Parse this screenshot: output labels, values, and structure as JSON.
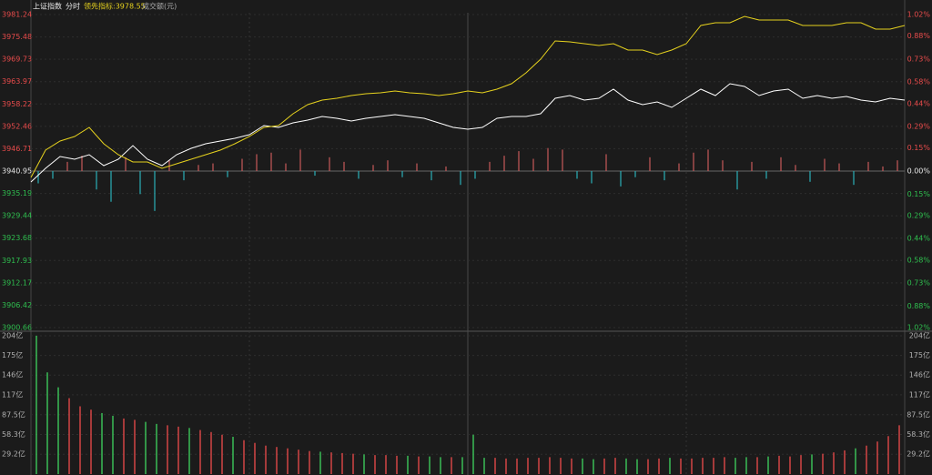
{
  "header": {
    "title": "上证指数",
    "mode": "分时",
    "indicator": "领先指标:3978.55",
    "volume_label": "成交额(元)"
  },
  "chart_data": [
    {
      "type": "line",
      "ylim": [
        3900.66,
        3981.24
      ],
      "yticks": [
        3981.24,
        3975.48,
        3969.73,
        3963.97,
        3958.22,
        3952.46,
        3946.71,
        3940.95,
        3935.19,
        3929.44,
        3923.68,
        3917.93,
        3912.17,
        3906.42,
        3900.66
      ],
      "y2lim": [
        -1.02,
        1.02
      ],
      "y2ticks": [
        {
          "value": 1.02,
          "label": "1.02%"
        },
        {
          "value": 0.88,
          "label": "0.88%"
        },
        {
          "value": 0.73,
          "label": "0.73%"
        },
        {
          "value": 0.58,
          "label": "0.58%"
        },
        {
          "value": 0.44,
          "label": "0.44%"
        },
        {
          "value": 0.29,
          "label": "0.29%"
        },
        {
          "value": 0.15,
          "label": "0.15%"
        },
        {
          "value": 0,
          "label": "0.00%"
        },
        {
          "value": -0.15,
          "label": "0.15%"
        },
        {
          "value": -0.29,
          "label": "0.29%"
        },
        {
          "value": -0.44,
          "label": "0.44%"
        },
        {
          "value": -0.58,
          "label": "0.58%"
        },
        {
          "value": -0.73,
          "label": "0.73%"
        },
        {
          "value": -0.88,
          "label": "0.88%"
        },
        {
          "value": -1.02,
          "label": "1.02%"
        }
      ],
      "grid": true,
      "up_color": "#e84b4b",
      "down_color": "#2fbf4f",
      "bar_up_color": "#c85a5a",
      "bar_down_color": "#2ab0b8",
      "series": [
        {
          "color": "#ffffff",
          "values": [
            3938.14,
            3941.65,
            3944.7,
            3944.0,
            3945.17,
            3942.36,
            3944.0,
            3947.51,
            3944.0,
            3942.36,
            3945.17,
            3946.81,
            3947.98,
            3948.68,
            3949.38,
            3950.32,
            3952.67,
            3952.2,
            3953.37,
            3954.07,
            3955.01,
            3954.54,
            3953.84,
            3954.54,
            3955.01,
            3955.48,
            3955.01,
            3954.54,
            3953.37,
            3952.2,
            3951.73,
            3952.2,
            3954.54,
            3955.01,
            3955.01,
            3955.71,
            3959.69,
            3960.4,
            3959.23,
            3959.69,
            3962.04,
            3959.23,
            3958.05,
            3958.76,
            3957.35,
            3959.69,
            3962.04,
            3960.4,
            3963.44,
            3962.74,
            3960.4,
            3961.57,
            3962.04,
            3959.69,
            3960.4,
            3959.69,
            3960.16,
            3959.23,
            3958.76,
            3959.69,
            3959.23
          ]
        },
        {
          "color": "#e6d21e",
          "values": [
            3939.31,
            3946.34,
            3948.68,
            3949.85,
            3952.2,
            3947.98,
            3945.17,
            3943.29,
            3943.29,
            3941.65,
            3942.82,
            3944.0,
            3945.17,
            3946.34,
            3947.98,
            3949.85,
            3952.2,
            3952.67,
            3955.71,
            3958.05,
            3959.23,
            3959.69,
            3960.4,
            3960.87,
            3961.1,
            3961.57,
            3961.1,
            3960.87,
            3960.4,
            3960.87,
            3961.57,
            3961.1,
            3962.04,
            3963.44,
            3966.25,
            3969.77,
            3974.45,
            3974.22,
            3973.75,
            3973.28,
            3973.75,
            3972.11,
            3972.11,
            3970.94,
            3972.11,
            3973.75,
            3978.44,
            3979.14,
            3979.14,
            3980.78,
            3979.84,
            3979.84,
            3979.84,
            3978.44,
            3978.44,
            3978.44,
            3979.14,
            3979.14,
            3977.5,
            3977.5,
            3978.44
          ]
        },
        {
          "type": "bar",
          "axis": "y2",
          "values": [
            -0.08,
            -0.05,
            0.06,
            0.1,
            -0.12,
            -0.2,
            0.09,
            -0.15,
            -0.26,
            0.07,
            -0.06,
            0.04,
            0.05,
            -0.04,
            0.08,
            0.11,
            0.12,
            0.05,
            0.14,
            -0.03,
            0.09,
            0.06,
            -0.05,
            0.04,
            0.07,
            -0.04,
            0.05,
            -0.06,
            0.03,
            -0.09,
            -0.05,
            0.06,
            0.1,
            0.13,
            0.08,
            0.15,
            0.14,
            -0.05,
            -0.08,
            0.11,
            -0.1,
            -0.04,
            0.09,
            -0.06,
            0.05,
            0.12,
            0.14,
            0.07,
            -0.12,
            0.06,
            -0.05,
            0.09,
            0.04,
            -0.07,
            0.08,
            0.05,
            -0.09,
            0.06,
            0.03,
            0.07
          ]
        }
      ]
    },
    {
      "type": "bar",
      "ylim": [
        0,
        204
      ],
      "yticks": [
        {
          "value": 204,
          "label": "204亿"
        },
        {
          "value": 175,
          "label": "175亿"
        },
        {
          "value": 146,
          "label": "146亿"
        },
        {
          "value": 117,
          "label": "117亿"
        },
        {
          "value": 87.5,
          "label": "87.5亿"
        },
        {
          "value": 58.3,
          "label": "58.3亿"
        },
        {
          "value": 29.2,
          "label": "29.2亿"
        }
      ],
      "up_color": "#e04848",
      "down_color": "#3cc85a",
      "values": [
        204,
        150,
        128,
        112,
        100,
        95,
        90,
        86,
        82,
        80,
        77,
        74,
        72,
        70,
        68,
        65,
        62,
        58,
        55,
        50,
        46,
        42,
        40,
        38,
        36,
        34,
        33,
        32,
        31,
        30,
        29,
        28,
        28,
        27,
        27,
        26,
        26,
        25,
        25,
        25,
        58,
        24,
        24,
        23,
        23,
        24,
        24,
        25,
        24,
        23,
        23,
        22,
        23,
        24,
        23,
        22,
        22,
        23,
        24,
        23,
        23,
        24,
        24,
        25,
        24,
        25,
        25,
        26,
        27,
        26,
        28,
        29,
        30,
        32,
        35,
        38,
        42,
        48,
        56,
        72
      ]
    }
  ]
}
